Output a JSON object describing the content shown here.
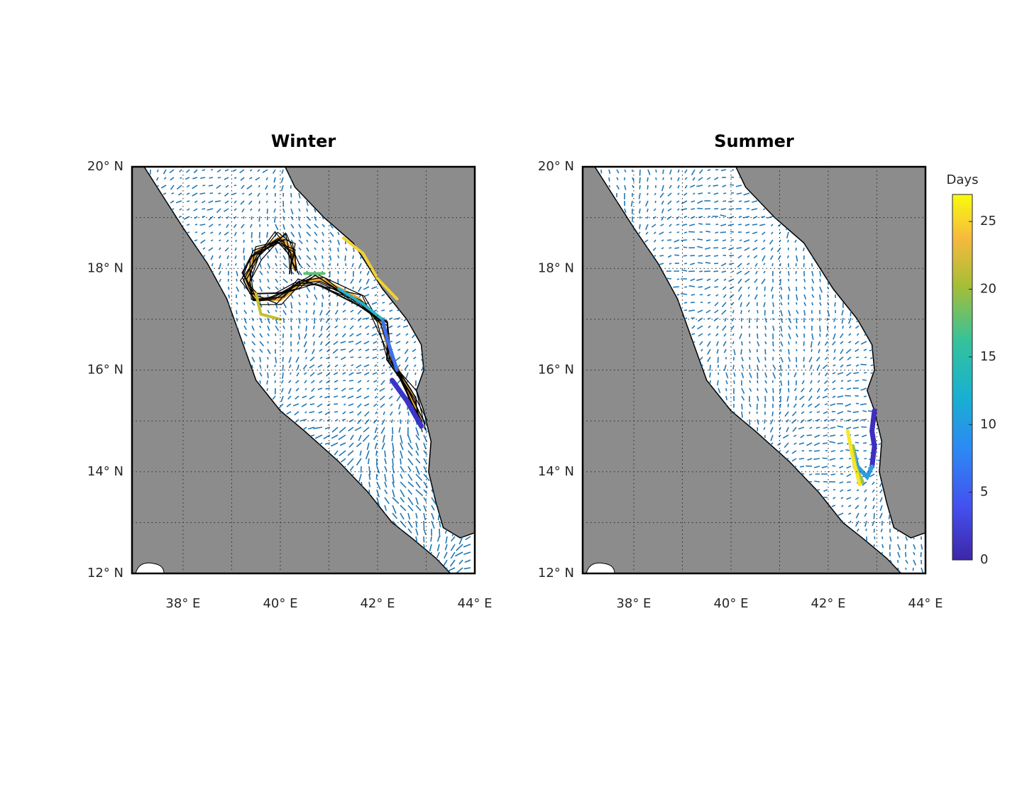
{
  "panels": [
    {
      "title": "Winter",
      "xlim": [
        36.95,
        44
      ],
      "ylim": [
        12,
        20
      ],
      "xticks": [
        {
          "value": 38,
          "label": "38° E"
        },
        {
          "value": 40,
          "label": "40° E"
        },
        {
          "value": 42,
          "label": "42° E"
        },
        {
          "value": 44,
          "label": "44° E"
        }
      ],
      "yticks": [
        {
          "value": 12,
          "label": "12° N"
        },
        {
          "value": 14,
          "label": "14° N"
        },
        {
          "value": 16,
          "label": "16° N"
        },
        {
          "value": 18,
          "label": "18° N"
        },
        {
          "value": 20,
          "label": "20° N"
        }
      ],
      "minor_xticks": [
        39,
        41,
        43
      ],
      "minor_yticks": [
        13,
        15,
        17,
        19
      ],
      "grid": true
    },
    {
      "title": "Summer",
      "xlim": [
        36.95,
        44
      ],
      "ylim": [
        12,
        20
      ],
      "xticks": [
        {
          "value": 38,
          "label": "38° E"
        },
        {
          "value": 40,
          "label": "40° E"
        },
        {
          "value": 42,
          "label": "42° E"
        },
        {
          "value": 44,
          "label": "44° E"
        }
      ],
      "yticks": [
        {
          "value": 12,
          "label": "12° N"
        },
        {
          "value": 14,
          "label": "14° N"
        },
        {
          "value": 16,
          "label": "16° N"
        },
        {
          "value": 18,
          "label": "18° N"
        },
        {
          "value": 20,
          "label": "20° N"
        }
      ],
      "minor_xticks": [
        39,
        41,
        43
      ],
      "minor_yticks": [
        13,
        15,
        17,
        19
      ],
      "grid": true
    }
  ],
  "colorbar": {
    "label": "Days",
    "lim": [
      0,
      27
    ],
    "ticks": [
      0,
      5,
      10,
      15,
      20,
      25
    ]
  }
}
